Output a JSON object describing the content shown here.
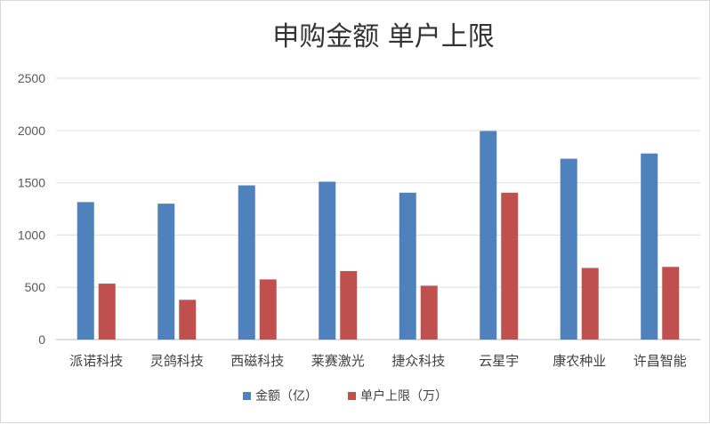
{
  "chart_data": {
    "type": "bar",
    "title": "申购金额 单户上限",
    "categories": [
      "派诺科技",
      "灵鸽科技",
      "西磁科技",
      "莱赛激光",
      "捷众科技",
      "云星宇",
      "康农种业",
      "许昌智能"
    ],
    "series": [
      {
        "name": "金额（亿）",
        "color": "#4f81bd",
        "values": [
          1315,
          1300,
          1475,
          1510,
          1405,
          1995,
          1730,
          1780
        ]
      },
      {
        "name": "单户上限（万）",
        "color": "#c0504d",
        "values": [
          535,
          380,
          575,
          655,
          515,
          1405,
          685,
          695
        ]
      }
    ],
    "ylim": [
      0,
      2500
    ],
    "yticks": [
      0,
      500,
      1000,
      1500,
      2000,
      2500
    ],
    "xlabel": "",
    "ylabel": "",
    "grid": true,
    "legend": "bottom"
  }
}
